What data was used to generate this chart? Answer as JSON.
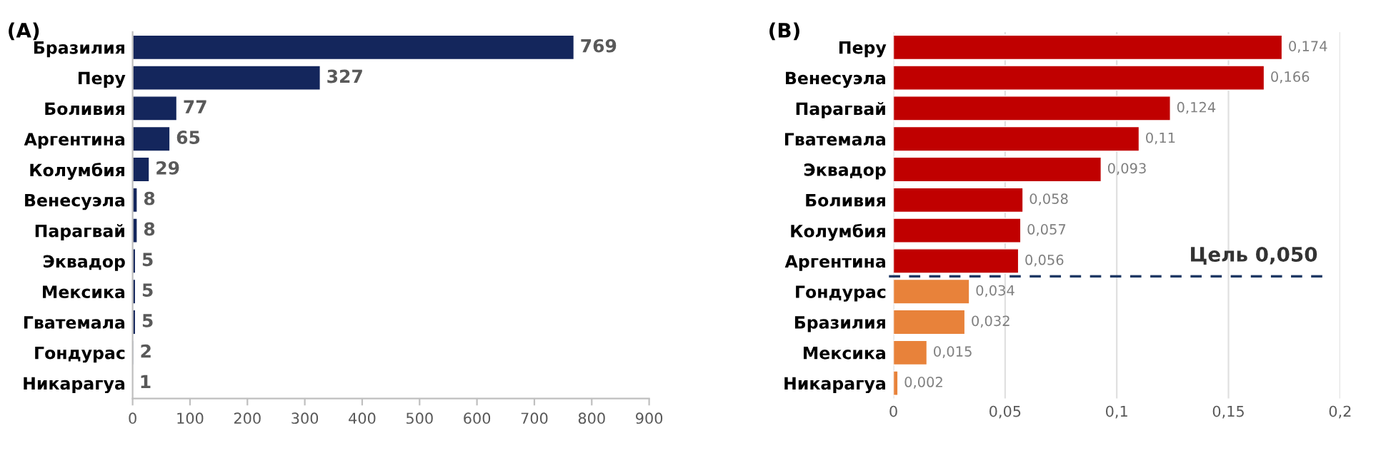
{
  "chart_data": [
    {
      "type": "bar",
      "orientation": "horizontal",
      "title": "(A)",
      "categories": [
        "Бразилия",
        "Перу",
        "Боливия",
        "Аргентина",
        "Колумбия",
        "Венесуэла",
        "Парагвай",
        "Эквадор",
        "Мексика",
        "Гватемала",
        "Гондурас",
        "Никарагуа"
      ],
      "values": [
        769,
        327,
        77,
        65,
        29,
        8,
        8,
        5,
        5,
        5,
        2,
        1
      ],
      "color": "#14265c",
      "data_labels": true,
      "grid": false,
      "xlim": [
        0,
        900
      ],
      "xticks": [
        0,
        100,
        200,
        300,
        400,
        500,
        600,
        700,
        800,
        900
      ]
    },
    {
      "type": "bar",
      "orientation": "horizontal",
      "title": "(B)",
      "categories": [
        "Перу",
        "Венесуэла",
        "Парагвай",
        "Гватемала",
        "Эквадор",
        "Боливия",
        "Колумбия",
        "Аргентина",
        "Гондурас",
        "Бразилия",
        "Мексика",
        "Никарагуа"
      ],
      "values": [
        0.174,
        0.166,
        0.124,
        0.11,
        0.093,
        0.058,
        0.057,
        0.056,
        0.034,
        0.032,
        0.015,
        0.002
      ],
      "value_labels": [
        "0,174",
        "0,166",
        "0,124",
        "0,11",
        "0,093",
        "0,058",
        "0,057",
        "0,056",
        "0,034",
        "0,032",
        "0,015",
        "0,002"
      ],
      "colors": [
        "#c00000",
        "#c00000",
        "#c00000",
        "#c00000",
        "#c00000",
        "#c00000",
        "#c00000",
        "#c00000",
        "#e8823a",
        "#e8823a",
        "#e8823a",
        "#e8823a"
      ],
      "grid": "x",
      "xlim": [
        0,
        0.2
      ],
      "xticks": [
        0,
        {
          "value": 0.05,
          "label": "0,05"
        },
        {
          "value": 0.1,
          "label": "0,1"
        },
        {
          "value": 0.15,
          "label": "0,15"
        },
        {
          "value": 0.2,
          "label": "0,2"
        }
      ],
      "annotations": [
        "Цель 0,050"
      ]
    }
  ]
}
